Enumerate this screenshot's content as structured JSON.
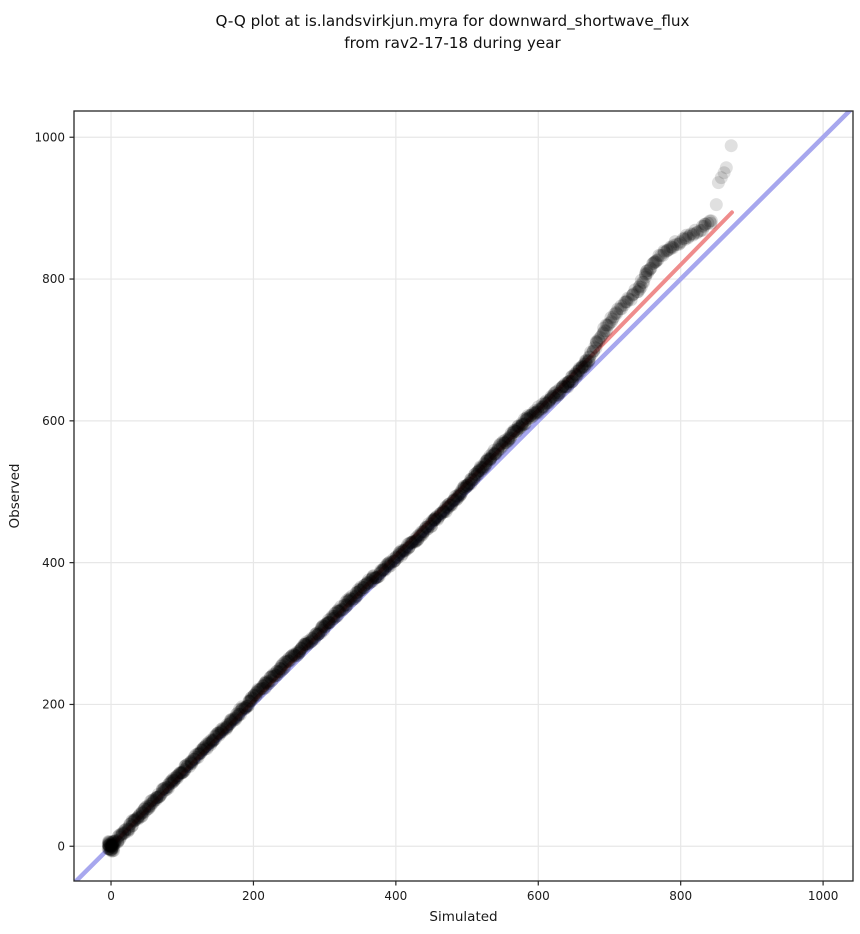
{
  "title": {
    "line1": "Q-Q plot at is.landsvirkjun.myra for downward_shortwave_flux",
    "line2": "from rav2-17-18 during year"
  },
  "chart_data": {
    "type": "scatter",
    "title": "Q-Q plot at is.landsvirkjun.myra for downward_shortwave_flux from rav2-17-18 during year",
    "xlabel": "Simulated",
    "ylabel": "Observed",
    "xlim": [
      -52,
      1042
    ],
    "ylim": [
      -49,
      1037
    ],
    "xticks": [
      0,
      200,
      400,
      600,
      800,
      1000
    ],
    "yticks": [
      0,
      200,
      400,
      600,
      800,
      1000
    ],
    "grid": true,
    "grid_color": "#e7e7e7",
    "axis_color": "#262626",
    "text_color": "#1b1b1b",
    "identity_line": {
      "name": "identity (y = x)",
      "color": "#a7a7ee",
      "width": 4.5,
      "from": [
        -52,
        -52
      ],
      "to": [
        1042,
        1042
      ]
    },
    "fit_line": {
      "name": "fitted line",
      "color": "#ef8c8c",
      "width": 4,
      "from": [
        0,
        0
      ],
      "to": [
        872,
        894
      ]
    },
    "scatter_style": {
      "color": "#000000",
      "opacity": 0.15,
      "radius": 6.5
    },
    "qq_curve": [
      [
        0,
        0
      ],
      [
        15,
        16
      ],
      [
        30,
        32
      ],
      [
        45,
        48
      ],
      [
        60,
        64
      ],
      [
        75,
        80
      ],
      [
        90,
        95
      ],
      [
        105,
        110
      ],
      [
        120,
        126
      ],
      [
        135,
        141
      ],
      [
        150,
        157
      ],
      [
        165,
        172
      ],
      [
        180,
        188
      ],
      [
        195,
        204
      ],
      [
        210,
        221
      ],
      [
        225,
        237
      ],
      [
        240,
        253
      ],
      [
        255,
        268
      ],
      [
        270,
        281
      ],
      [
        285,
        295
      ],
      [
        300,
        310
      ],
      [
        315,
        325
      ],
      [
        330,
        341
      ],
      [
        345,
        356
      ],
      [
        360,
        370
      ],
      [
        375,
        383
      ],
      [
        390,
        397
      ],
      [
        405,
        411
      ],
      [
        420,
        425
      ],
      [
        435,
        440
      ],
      [
        450,
        455
      ],
      [
        465,
        470
      ],
      [
        480,
        486
      ],
      [
        495,
        503
      ],
      [
        510,
        521
      ],
      [
        525,
        539
      ],
      [
        540,
        556
      ],
      [
        555,
        572
      ],
      [
        570,
        588
      ],
      [
        585,
        603
      ],
      [
        600,
        616
      ],
      [
        615,
        628
      ],
      [
        630,
        641
      ],
      [
        645,
        656
      ],
      [
        658,
        671
      ],
      [
        670,
        686
      ],
      [
        678,
        701
      ],
      [
        686,
        716
      ],
      [
        693,
        728
      ],
      [
        700,
        739
      ],
      [
        707,
        750
      ],
      [
        714,
        758
      ],
      [
        721,
        765
      ],
      [
        728,
        772
      ],
      [
        735,
        780
      ],
      [
        742,
        789
      ],
      [
        748,
        799
      ],
      [
        753,
        809
      ],
      [
        757,
        816
      ],
      [
        763,
        823
      ],
      [
        769,
        829
      ],
      [
        776,
        835
      ],
      [
        783,
        841
      ],
      [
        790,
        847
      ],
      [
        797,
        852
      ],
      [
        805,
        857
      ],
      [
        813,
        862
      ],
      [
        821,
        866
      ],
      [
        829,
        871
      ],
      [
        836,
        876
      ],
      [
        843,
        882
      ]
    ],
    "bend_start_x": 668,
    "origin_cluster": {
      "center": [
        0,
        0
      ],
      "count": 35,
      "x_spread": 8,
      "y_spread": 14
    },
    "outliers": [
      [
        850,
        905
      ],
      [
        853,
        936
      ],
      [
        857,
        943
      ],
      [
        861,
        950
      ],
      [
        864,
        957
      ],
      [
        871,
        988
      ]
    ]
  }
}
